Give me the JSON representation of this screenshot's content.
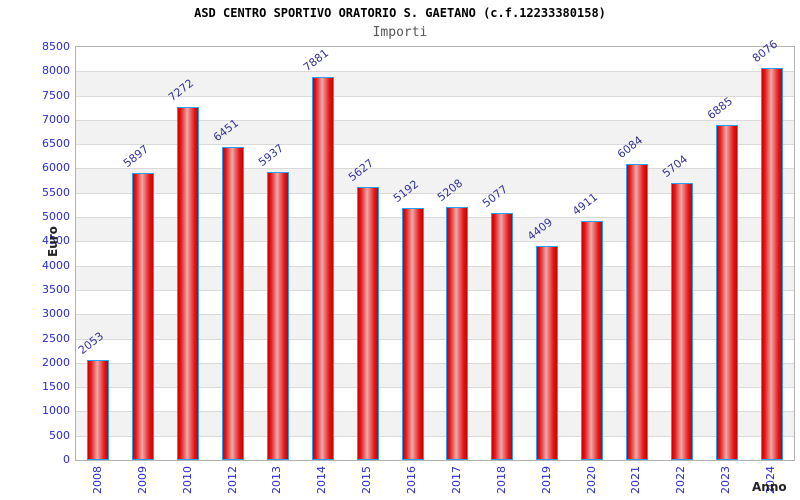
{
  "chart_data": {
    "type": "bar",
    "title": "ASD CENTRO SPORTIVO ORATORIO S. GAETANO (c.f.12233380158)",
    "subtitle": "Importi",
    "xlabel": "Anno",
    "ylabel": "Euro",
    "categories": [
      "2008",
      "2009",
      "2010",
      "2012",
      "2013",
      "2014",
      "2015",
      "2016",
      "2017",
      "2018",
      "2019",
      "2020",
      "2021",
      "2022",
      "2023",
      "2024"
    ],
    "values": [
      2053,
      5897,
      7272,
      6451,
      5937,
      7881,
      5627,
      5192,
      5208,
      5077,
      4409,
      4911,
      6084,
      5704,
      6885,
      8076
    ],
    "ylim": [
      0,
      8500
    ],
    "ytick_step": 500,
    "grid": true,
    "legend_position": "none",
    "bar_value_labels": true,
    "colors": {
      "bar_fill_edge": "#c40404",
      "bar_fill_mid": "#eda9a9",
      "bar_border": "#2a9ff6",
      "axis_tick_label": "#2a2ad4",
      "bar_value_label": "#333399",
      "axis_title": "#222222",
      "title": "#000000",
      "subtitle": "#585858",
      "stripe": "#f2f2f2",
      "gridline": "#d9d9d9",
      "plot_border": "#b3b3b3"
    }
  }
}
